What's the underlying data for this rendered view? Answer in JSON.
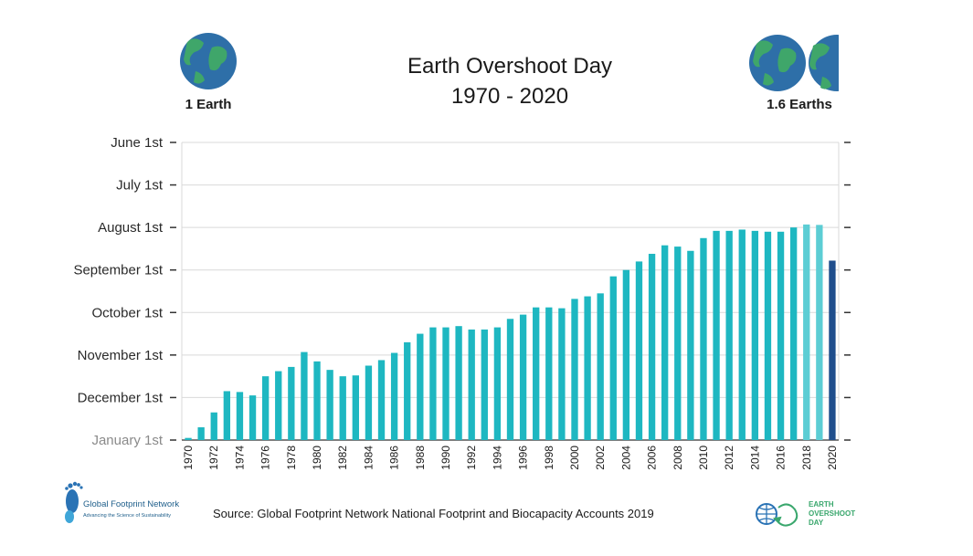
{
  "chart_data": {
    "type": "bar",
    "title": "Earth Overshoot Day",
    "subtitle": "1970 - 2020",
    "y_ticks": [
      "June 1st",
      "July 1st",
      "August 1st",
      "September 1st",
      "October 1st",
      "November 1st",
      "December 1st",
      "January 1st"
    ],
    "y_tick_months_from_jan": [
      7,
      6,
      5,
      4,
      3,
      2,
      1,
      0
    ],
    "ylim_months_from_jan": [
      0,
      7
    ],
    "y_direction": "January 1st at bottom, June 1st at top (earlier date = taller bar)",
    "x": [
      1970,
      1971,
      1972,
      1973,
      1974,
      1975,
      1976,
      1977,
      1978,
      1979,
      1980,
      1981,
      1982,
      1983,
      1984,
      1985,
      1986,
      1987,
      1988,
      1989,
      1990,
      1991,
      1992,
      1993,
      1994,
      1995,
      1996,
      1997,
      1998,
      1999,
      2000,
      2001,
      2002,
      2003,
      2004,
      2005,
      2006,
      2007,
      2008,
      2009,
      2010,
      2011,
      2012,
      2013,
      2014,
      2015,
      2016,
      2017,
      2018,
      2019,
      2020
    ],
    "x_tick_labels": [
      "1970",
      "1972",
      "1974",
      "1976",
      "1978",
      "1980",
      "1982",
      "1984",
      "1986",
      "1988",
      "1990",
      "1992",
      "1994",
      "1996",
      "1998",
      "2000",
      "2002",
      "2004",
      "2006",
      "2008",
      "2010",
      "2012",
      "2014",
      "2016",
      "2018",
      "2020"
    ],
    "values": [
      0.05,
      0.3,
      0.65,
      1.15,
      1.13,
      1.05,
      1.5,
      1.62,
      1.72,
      2.07,
      1.85,
      1.65,
      1.5,
      1.52,
      1.75,
      1.88,
      2.05,
      2.3,
      2.5,
      2.65,
      2.65,
      2.68,
      2.6,
      2.6,
      2.65,
      2.85,
      2.95,
      3.12,
      3.12,
      3.1,
      3.32,
      3.38,
      3.45,
      3.85,
      4.0,
      4.2,
      4.38,
      4.58,
      4.55,
      4.45,
      4.75,
      4.92,
      4.92,
      4.95,
      4.92,
      4.9,
      4.9,
      5.0,
      5.07,
      5.06,
      4.22
    ],
    "colors": {
      "bar": "#1eb7c1",
      "bar_light": "#5ccdd4",
      "bar_2020": "#1f4e8c",
      "grid": "#d9d9d9",
      "axis": "#333333"
    },
    "highlight": {
      "light_years": [
        2018,
        2019
      ],
      "dark_years": [
        2020
      ]
    },
    "grid": true
  },
  "earths": {
    "left_label": "1 Earth",
    "right_label": "1.6 Earths"
  },
  "footer": {
    "source": "Source: Global Footprint Network National Footprint and Biocapacity Accounts 2019",
    "gfn_name": "Global Footprint Network",
    "gfn_tagline": "Advancing the Science of Sustainability",
    "eod_line1": "EARTH",
    "eod_line2": "OVERSHOOT",
    "eod_line3": "DAY"
  }
}
